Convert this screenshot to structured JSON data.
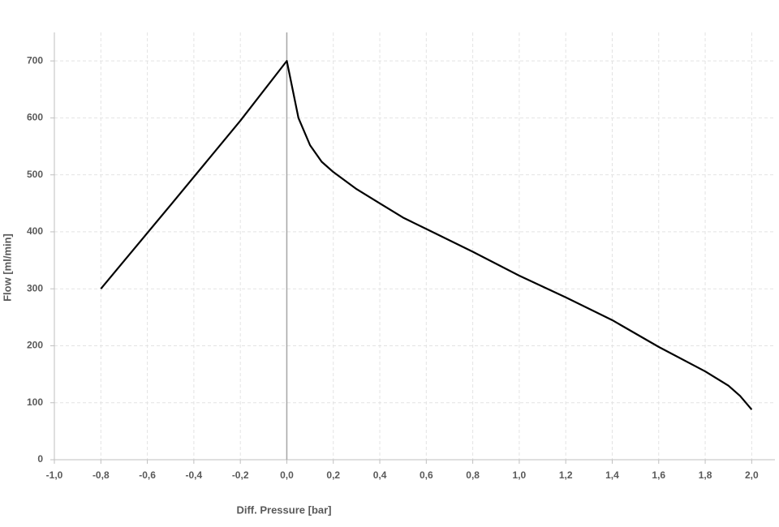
{
  "chart_data": {
    "type": "line",
    "x_label": "Diff. Pressure [bar]",
    "y_label": "Flow [ml/min]",
    "x": [
      -0.8,
      -0.5,
      -0.2,
      0,
      0.05,
      0.1,
      0.15,
      0.2,
      0.3,
      0.4,
      0.5,
      0.6,
      0.8,
      1.0,
      1.2,
      1.4,
      1.6,
      1.8,
      1.9,
      1.95,
      2.0
    ],
    "values": [
      300,
      447,
      595,
      700,
      600,
      552,
      523,
      505,
      475,
      450,
      425,
      405,
      365,
      323,
      285,
      245,
      198,
      155,
      130,
      112,
      88
    ],
    "color": "#000000",
    "xlim": [
      -1,
      2.1
    ],
    "ylim": [
      0,
      750
    ],
    "xticks": [
      {
        "value": -1.0,
        "label": "-1,0"
      },
      {
        "value": -0.8,
        "label": "-0,8"
      },
      {
        "value": -0.6,
        "label": "-0,6"
      },
      {
        "value": -0.4,
        "label": "-0,4"
      },
      {
        "value": -0.2,
        "label": "-0,2"
      },
      {
        "value": 0.0,
        "label": "0,0"
      },
      {
        "value": 0.2,
        "label": "0,2"
      },
      {
        "value": 0.4,
        "label": "0,4"
      },
      {
        "value": 0.6,
        "label": "0,6"
      },
      {
        "value": 0.8,
        "label": "0,8"
      },
      {
        "value": 1.0,
        "label": "1,0"
      },
      {
        "value": 1.2,
        "label": "1,2"
      },
      {
        "value": 1.4,
        "label": "1,4"
      },
      {
        "value": 1.6,
        "label": "1,6"
      },
      {
        "value": 1.8,
        "label": "1,8"
      },
      {
        "value": 2.0,
        "label": "2,0"
      }
    ],
    "yticks": [
      0,
      100,
      200,
      300,
      400,
      500,
      600,
      700
    ],
    "grid": true
  }
}
